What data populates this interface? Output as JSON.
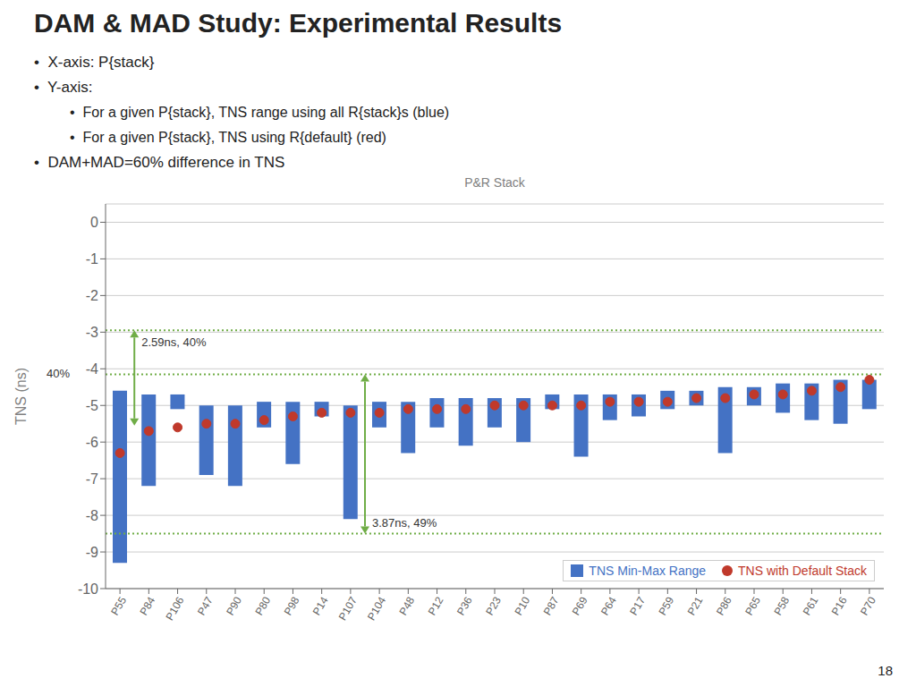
{
  "chart_data": {
    "type": "bar",
    "title": "DAM & MAD Study: Experimental Results",
    "subtitle": [
      "•  X-axis: P{stack}",
      "•  Y-axis:",
      "•  For a given P{stack}, TNS range using all R{stack}s (blue)",
      "•  For a given P{stack}, TNS using R{default} (red)",
      "•  DAM+MAD=60% difference in TNS"
    ],
    "x_label": "P&R Stack",
    "y_label": "TNS (ns)",
    "categories": [
      "P55",
      "P84",
      "P106",
      "P47",
      "P90",
      "P80",
      "P98",
      "P14",
      "P107",
      "P104",
      "P48",
      "P12",
      "P36",
      "P23",
      "P10",
      "P87",
      "P69",
      "P64",
      "P17",
      "P59",
      "P21",
      "P86",
      "P65",
      "P58",
      "P61",
      "P16",
      "P70"
    ],
    "series": [
      {
        "name": "TNS Min-Max Range",
        "type": "bar",
        "color": "#4472C4",
        "low": [
          -9.3,
          -7.2,
          -5.1,
          -6.9,
          -7.2,
          -5.6,
          -6.6,
          -5.3,
          -8.1,
          -5.6,
          -6.3,
          -5.6,
          -6.1,
          -5.6,
          -6.0,
          -5.1,
          -6.4,
          -5.4,
          -5.3,
          -5.1,
          -5.0,
          -6.3,
          -5.0,
          -5.2,
          -5.4,
          -5.5,
          -5.1
        ],
        "high": [
          -4.6,
          -4.7,
          -4.7,
          -5.0,
          -5.0,
          -4.9,
          -4.9,
          -4.9,
          -5.0,
          -4.9,
          -4.9,
          -4.8,
          -4.8,
          -4.8,
          -4.8,
          -4.7,
          -4.7,
          -4.7,
          -4.7,
          -4.6,
          -4.6,
          -4.5,
          -4.5,
          -4.4,
          -4.4,
          -4.3,
          -4.3
        ]
      },
      {
        "name": "TNS with Default Stack",
        "type": "scatter",
        "color": "#C0392B",
        "marker": "circle",
        "values": [
          -6.3,
          -5.7,
          -5.6,
          -5.5,
          -5.5,
          -5.4,
          -5.3,
          -5.2,
          -5.2,
          -5.2,
          -5.1,
          -5.1,
          -5.1,
          -5.0,
          -5.0,
          -5.0,
          -5.0,
          -4.9,
          -4.9,
          -4.9,
          -4.8,
          -4.8,
          -4.7,
          -4.7,
          -4.6,
          -4.5,
          -4.3
        ]
      }
    ],
    "ylim": [
      -10,
      0.5
    ],
    "yticks": [
      0,
      -1,
      -2,
      -3,
      -4,
      -5,
      -6,
      -7,
      -8,
      -9,
      -10
    ],
    "grid": true,
    "legend": "lower right",
    "reference_lines": {
      "values": [
        -2.95,
        -4.15,
        -8.5
      ],
      "color": "#70AD47",
      "line_style": "dotted"
    },
    "annotations": [
      {
        "text": "2.59ns, 40%",
        "from": -5.55,
        "to": -2.95
      },
      {
        "text": "3.87ns, 49%",
        "from": -8.5,
        "to": -4.15
      },
      {
        "text": "40%"
      }
    ],
    "footer": "18"
  }
}
